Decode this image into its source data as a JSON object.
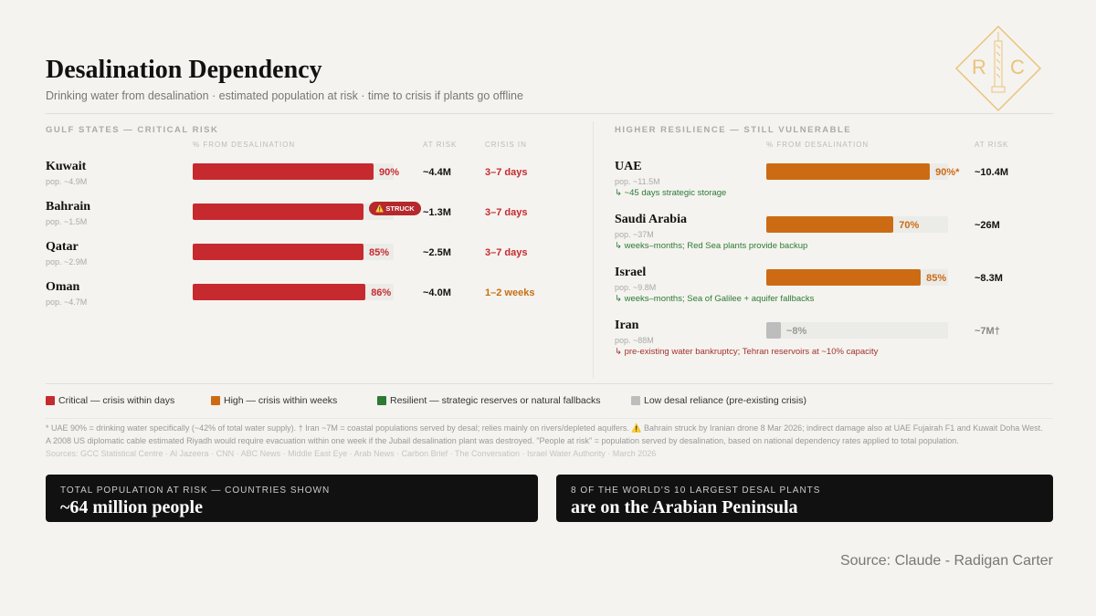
{
  "header": {
    "title": "Desalination Dependency",
    "subtitle": "Drinking water from desalination · estimated population at risk · time to crisis if plants go offline",
    "logo_letters": [
      "R",
      "C"
    ]
  },
  "gulf": {
    "heading": "GULF STATES — CRITICAL RISK",
    "columns": [
      "% FROM DESALINATION",
      "AT RISK",
      "CRISIS IN"
    ],
    "rows": [
      {
        "name": "Kuwait",
        "pop": "pop. ~4.9M",
        "pct": 90,
        "pct_label": "90%",
        "at_risk": "~4.4M",
        "crisis": "3–7 days",
        "color": "#c62a2f",
        "crisis_color": "#c62a2f"
      },
      {
        "name": "Bahrain",
        "pop": "pop. ~1.5M",
        "pct": 85,
        "badge": "⚠️ STRUCK",
        "at_risk": "~1.3M",
        "crisis": "3–7 days",
        "color": "#c62a2f",
        "crisis_color": "#c62a2f"
      },
      {
        "name": "Qatar",
        "pop": "pop. ~2.9M",
        "pct": 85,
        "pct_label": "85%",
        "at_risk": "~2.5M",
        "crisis": "3–7 days",
        "color": "#c62a2f",
        "crisis_color": "#c62a2f"
      },
      {
        "name": "Oman",
        "pop": "pop. ~4.7M",
        "pct": 86,
        "pct_label": "86%",
        "at_risk": "~4.0M",
        "crisis": "1–2 weeks",
        "color": "#c62a2f",
        "crisis_color": "#c87014"
      }
    ]
  },
  "resilient": {
    "heading": "HIGHER RESILIENCE — STILL VULNERABLE",
    "columns": [
      "% FROM DESALINATION",
      "AT RISK"
    ],
    "rows": [
      {
        "name": "UAE",
        "pop": "pop. ~11.5M",
        "pct": 90,
        "pct_label": "90%*",
        "at_risk": "~10.4M",
        "note": "↳ ~45 days strategic storage",
        "color": "#cc6b14",
        "note_color": "#2d7a34"
      },
      {
        "name": "Saudi Arabia",
        "pop": "pop. ~37M",
        "pct": 70,
        "pct_label": "70%",
        "at_risk": "~26M",
        "note": "↳ weeks–months; Red Sea plants provide backup",
        "color": "#cc6b14",
        "note_color": "#2d7a34"
      },
      {
        "name": "Israel",
        "pop": "pop. ~9.8M",
        "pct": 85,
        "pct_label": "85%",
        "at_risk": "~8.3M",
        "note": "↳ weeks–months; Sea of Galilee + aquifer fallbacks",
        "color": "#cc6b14",
        "note_color": "#2d7a34"
      },
      {
        "name": "Iran",
        "pop": "pop. ~88M",
        "pct": 8,
        "pct_label": "~8%",
        "at_risk": "~7M†",
        "note": "↳ pre-existing water bankruptcy; Tehran reservoirs at ~10% capacity",
        "color": "#bdbdbd",
        "note_color": "#a3322e"
      }
    ]
  },
  "legend": [
    {
      "label": "Critical — crisis within days",
      "color": "#c62a2f"
    },
    {
      "label": "High — crisis within weeks",
      "color": "#cc6b14"
    },
    {
      "label": "Resilient — strategic reserves or natural fallbacks",
      "color": "#2d7a34"
    },
    {
      "label": "Low desal reliance (pre-existing crisis)",
      "color": "#bdbdbd"
    }
  ],
  "footnotes": [
    "* UAE 90% = drinking water specifically (~42% of total water supply). † Iran ~7M = coastal populations served by desal; relies mainly on rivers/depleted aquifers. ⚠️ Bahrain struck by Iranian drone 8 Mar 2026; indirect damage also at UAE Fujairah F1 and Kuwait Doha West.",
    "A 2008 US diplomatic cable estimated Riyadh would require evacuation within one week if the Jubail desalination plant was destroyed. \"People at risk\" = population served by desalination, based on national dependency rates applied to total population."
  ],
  "sources": "Sources: GCC Statistical Centre · Al Jazeera · CNN · ABC News · Middle East Eye · Arab News · Carbon Brief · The Conversation · Israel Water Authority · March 2026",
  "callouts": [
    {
      "kicker": "TOTAL POPULATION AT RISK — COUNTRIES SHOWN",
      "headline": "~64 million people"
    },
    {
      "kicker": "8 OF THE WORLD'S 10 LARGEST DESAL PLANTS",
      "headline": "are on the Arabian Peninsula"
    }
  ],
  "source": "Source: Claude - Radigan Carter"
}
